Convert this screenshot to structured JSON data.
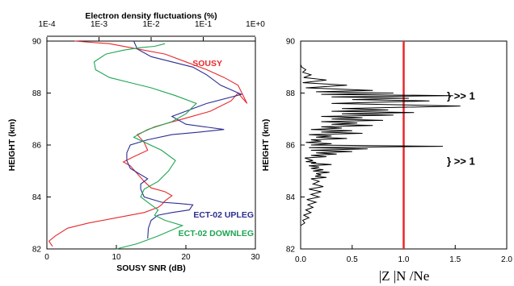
{
  "colors": {
    "sousy": "#e8282d",
    "upleg": "#2b2e8f",
    "downleg": "#1ea552",
    "ratio": "#000000",
    "threshold": "#e8282d"
  },
  "chart_data": [
    {
      "type": "line",
      "xlabel": "SOUSY SNR (dB)",
      "x2label": "Electron density fluctuations (%)",
      "ylabel": "HEIGHT (km)",
      "xlim": [
        0,
        30
      ],
      "ylim": [
        82,
        90
      ],
      "xticks": [
        "0",
        "10",
        "20",
        "30"
      ],
      "x2ticks": [
        "1E-4",
        "1E-3",
        "1E-2",
        "1E-1",
        "1E+0"
      ],
      "x2lim_log10": [
        -4,
        0
      ],
      "yticks": [
        "82",
        "84",
        "86",
        "88",
        "90"
      ],
      "series": [
        {
          "name": "SOUSY",
          "axis": "x",
          "label_pos": "top-right",
          "x": [
            0.8,
            0.3,
            1.2,
            3.0,
            6.0,
            10.0,
            14.0,
            16.0,
            16.5,
            17.0,
            18.0,
            17.0,
            15.0,
            14.0,
            13.0,
            12.0,
            11.0,
            12.5,
            14.5,
            14.0,
            13.0,
            15.5,
            19.5,
            23.5,
            26.5,
            27.5,
            28.8,
            27.5,
            25.5,
            23.0,
            20.0,
            17.0,
            13.0,
            9.0,
            4.0
          ],
          "y": [
            82.1,
            82.3,
            82.5,
            82.8,
            83.0,
            83.2,
            83.4,
            83.6,
            83.7,
            83.85,
            84.05,
            84.2,
            84.35,
            84.6,
            84.9,
            85.2,
            85.35,
            85.55,
            85.8,
            86.1,
            86.4,
            86.7,
            87.0,
            87.3,
            87.7,
            88.0,
            87.6,
            88.3,
            88.6,
            88.9,
            89.2,
            89.5,
            89.7,
            89.9,
            90.0
          ]
        },
        {
          "name": "ECT-02 UPLEG",
          "axis": "x2",
          "label_pos": "bottom-right",
          "x": [
            14.5,
            14.6,
            15.0,
            16.0,
            18.0,
            20.5,
            21.0,
            19.0,
            16.5,
            14.0,
            13.5,
            13.5,
            14.5,
            12.0,
            11.5,
            11.5,
            12.0,
            14.5,
            18.0,
            22.0,
            25.5,
            20.0,
            18.0,
            23.0,
            28.0,
            25.0,
            23.0,
            21.0,
            18.0,
            15.0,
            13.0,
            12.5
          ],
          "y": [
            82.4,
            82.8,
            83.1,
            83.3,
            83.4,
            83.5,
            83.7,
            83.75,
            83.8,
            84.0,
            84.3,
            84.5,
            84.7,
            85.1,
            85.4,
            85.7,
            86.0,
            86.2,
            86.4,
            86.5,
            86.6,
            86.8,
            87.1,
            87.6,
            87.95,
            88.3,
            88.7,
            89.0,
            89.2,
            89.4,
            89.7,
            90.0
          ]
        },
        {
          "name": "ECT-02 DOWNLEG",
          "axis": "x2",
          "label_pos": "bottom-right",
          "x": [
            10.0,
            13.0,
            16.0,
            19.5,
            17.0,
            15.5,
            16.0,
            15.0,
            13.5,
            14.0,
            16.0,
            17.5,
            18.5,
            16.5,
            12.5,
            14.5,
            18.0,
            20.0,
            21.5,
            18.5,
            15.0,
            12.0,
            9.0,
            7.0,
            6.8,
            8.5,
            11.0,
            13.5,
            15.5,
            17.0
          ],
          "y": [
            82.0,
            82.2,
            82.5,
            82.9,
            83.1,
            83.3,
            83.5,
            83.7,
            84.0,
            84.3,
            84.6,
            85.0,
            85.4,
            85.8,
            86.3,
            86.6,
            86.9,
            87.2,
            87.6,
            87.9,
            88.2,
            88.4,
            88.6,
            88.9,
            89.2,
            89.5,
            89.65,
            89.75,
            89.8,
            89.9
          ]
        }
      ]
    },
    {
      "type": "line",
      "xlabel": "|Z |N /Ne",
      "ylabel": "HEIGHT (km)",
      "xlim": [
        0,
        2
      ],
      "ylim": [
        82,
        90
      ],
      "xticks": [
        "0.0",
        "0.5",
        "1.0",
        "1.5",
        "2.0"
      ],
      "yticks": [
        "82",
        "84",
        "86",
        "88",
        "90"
      ],
      "threshold_x": 1.0,
      "annotations": [
        {
          "text": "} >> 1",
          "y": 87.9
        },
        {
          "text": "} >> 1",
          "y": 85.4
        }
      ],
      "series": [
        {
          "x": [
            0.0,
            0.04,
            0.02,
            0.08,
            0.03,
            0.1,
            0.05,
            0.12,
            0.07,
            0.15,
            0.06,
            0.18,
            0.1,
            0.2,
            0.08,
            0.22,
            0.12,
            0.18,
            0.1,
            0.25,
            0.14,
            0.2,
            0.15,
            0.28,
            0.12,
            0.22,
            0.1,
            0.18,
            0.08,
            0.3,
            0.1,
            0.15,
            0.05,
            0.12,
            0.04,
            0.25,
            0.1,
            0.35,
            0.15,
            0.5,
            0.1,
            0.65,
            0.08,
            1.38,
            0.1,
            0.3,
            0.05,
            0.2,
            0.1,
            0.45,
            0.15,
            0.3,
            0.08,
            0.6,
            0.2,
            0.5,
            0.1,
            0.4,
            0.2,
            0.7,
            0.3,
            0.55,
            0.2,
            0.8,
            0.3,
            0.6,
            0.2,
            0.9,
            0.4,
            1.1,
            0.3,
            0.85,
            0.4,
            1.55,
            0.3,
            1.25,
            0.5,
            1.05,
            0.3,
            1.48,
            0.2,
            0.9,
            0.15,
            0.7,
            0.05,
            0.45,
            0.02,
            0.25,
            0.03,
            0.1,
            0.02,
            0.05,
            0.01,
            0.0
          ],
          "y": [
            82.9,
            83.0,
            83.1,
            83.2,
            83.3,
            83.4,
            83.5,
            83.6,
            83.7,
            83.8,
            83.9,
            84.0,
            84.1,
            84.2,
            84.3,
            84.4,
            84.5,
            84.6,
            84.7,
            84.75,
            84.8,
            84.85,
            84.9,
            84.95,
            85.0,
            85.05,
            85.1,
            85.15,
            85.2,
            85.25,
            85.3,
            85.33,
            85.36,
            85.4,
            85.5,
            85.55,
            85.6,
            85.65,
            85.7,
            85.75,
            85.8,
            85.85,
            85.9,
            85.95,
            86.0,
            86.05,
            86.1,
            86.15,
            86.2,
            86.25,
            86.3,
            86.35,
            86.4,
            86.45,
            86.5,
            86.55,
            86.6,
            86.65,
            86.7,
            86.75,
            86.8,
            86.85,
            86.9,
            86.95,
            87.0,
            87.05,
            87.1,
            87.15,
            87.2,
            87.25,
            87.3,
            87.35,
            87.4,
            87.5,
            87.6,
            87.7,
            87.75,
            87.8,
            87.85,
            87.9,
            87.95,
            88.0,
            88.05,
            88.1,
            88.2,
            88.3,
            88.4,
            88.5,
            88.6,
            88.7,
            88.8,
            88.9,
            89.0,
            89.1
          ]
        }
      ]
    }
  ]
}
